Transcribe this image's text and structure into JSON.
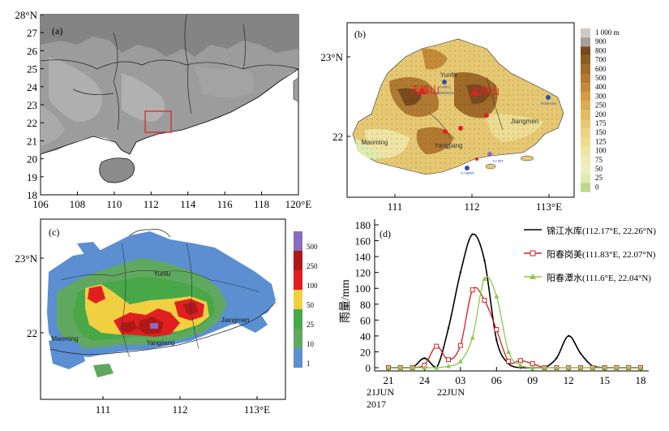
{
  "panel_a": {
    "label": "(a)",
    "y_ticks": [
      "28°N",
      "27",
      "26",
      "25",
      "24",
      "23",
      "22",
      "21",
      "20",
      "19",
      "18"
    ],
    "x_ticks": [
      "106",
      "108",
      "110",
      "112",
      "114",
      "116",
      "118",
      "120°E"
    ]
  },
  "panel_b": {
    "label": "(b)",
    "y_ticks": [
      "23°N",
      "22"
    ],
    "x_ticks": [
      "111",
      "112",
      "113°E"
    ],
    "legend_unit": "1 000 m",
    "legend_labels": [
      "900",
      "800",
      "700",
      "600",
      "500",
      "400",
      "300",
      "250",
      "200",
      "175",
      "150",
      "125",
      "100",
      "75",
      "50",
      "25",
      "0"
    ],
    "legend_colors": [
      "#a89f98",
      "#7a4a1e",
      "#8e5a22",
      "#a06a28",
      "#b27a30",
      "#c48a38",
      "#d49c42",
      "#dcae54",
      "#e2bc62",
      "#e6c872",
      "#ead482",
      "#eedc92",
      "#f0e4a4",
      "#f0eab6",
      "#ecefc2",
      "#dcebb0",
      "#bcd888"
    ],
    "place_labels": [
      "Yunfu",
      "Maoming",
      "Yangjiang",
      "Jiangmen",
      "天露山",
      "大雁山"
    ],
    "station_labels": [
      "YUNFU",
      "LONGWAN",
      "TAISHAN",
      "YJ WPR",
      "YJ WT"
    ],
    "colors": {
      "land": "#e6c872",
      "highland": "#9a6a2e",
      "sea": "#ffffff",
      "station": "#2f4fa8",
      "rain_gauge": "#e02020"
    }
  },
  "panel_c": {
    "label": "(c)",
    "y_ticks": [
      "23°N",
      "22"
    ],
    "x_ticks": [
      "111",
      "112",
      "113°E"
    ],
    "legend_labels": [
      "500",
      "250",
      "100",
      "50",
      "25",
      "10",
      "1"
    ],
    "legend_colors": [
      "#8a6cc0",
      "#b01818",
      "#e02020",
      "#f0d040",
      "#48a848",
      "#60a860",
      "#5b8fd2"
    ],
    "place_labels": [
      "Yunfu",
      "Maoming",
      "Yangjiang",
      "Jiangmen"
    ]
  },
  "panel_d": {
    "label": "(d)",
    "ylabel": "雨量/mm",
    "x_ticks": [
      "21",
      "24",
      "03",
      "06",
      "09",
      "12",
      "15",
      "18"
    ],
    "date_labels": [
      "21JUN",
      "22JUN",
      "2017"
    ],
    "chart_data": {
      "type": "line",
      "title": "",
      "xlabel": "",
      "ylabel": "雨量/mm",
      "x_hours": [
        21,
        22,
        23,
        24,
        25,
        26,
        27,
        28,
        29,
        30,
        31,
        32,
        33,
        34,
        35,
        36,
        37,
        38,
        39,
        40,
        41,
        42
      ],
      "ylim": [
        0,
        180
      ],
      "yticks": [
        0,
        20,
        40,
        60,
        80,
        100,
        120,
        140,
        160,
        180
      ],
      "series": [
        {
          "name": "锦江水库(112.17°E, 22.26°N)",
          "color": "#000000",
          "marker": "none",
          "values": [
            0,
            0,
            0,
            12,
            0,
            50,
            120,
            168,
            135,
            35,
            5,
            0,
            0,
            0,
            12,
            40,
            18,
            2,
            0,
            0,
            0,
            0
          ]
        },
        {
          "name": "阳春岗美(111.83°E, 22.07°N)",
          "color": "#cc2222",
          "marker": "square",
          "values": [
            0,
            0,
            0,
            3,
            27,
            10,
            28,
            98,
            85,
            48,
            8,
            9,
            5,
            0,
            0,
            0,
            0,
            0,
            0,
            0,
            0,
            0
          ]
        },
        {
          "name": "阳春潭水(111.6°E, 22.04°N)",
          "color": "#8cc850",
          "marker": "triangle",
          "values": [
            0,
            0,
            0,
            0,
            0,
            2,
            8,
            38,
            112,
            90,
            20,
            3,
            0,
            0,
            0,
            0,
            0,
            0,
            0,
            0,
            0,
            0
          ]
        }
      ]
    }
  }
}
